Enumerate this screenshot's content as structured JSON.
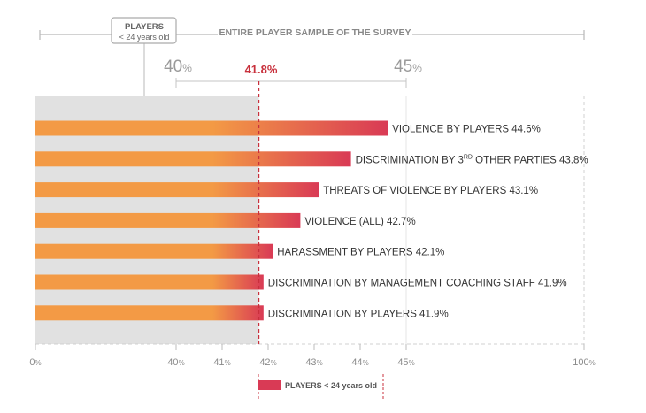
{
  "chart_data": {
    "type": "bar",
    "orientation": "horizontal",
    "title": "ENTIRE PLAYER SAMPLE OF THE SURVEY",
    "subgroup_box": {
      "line1": "PLAYERS",
      "line2": "< 24 years old"
    },
    "reference_value": 41.8,
    "reference_label": "41.8%",
    "top_scale": [
      {
        "value": 40,
        "num": "40",
        "unit": "%"
      },
      {
        "value": 45,
        "num": "45",
        "unit": "%"
      }
    ],
    "series_name": "PLAYERS < 24 years old",
    "categories": [
      {
        "pre": "VIOLENCE BY PLAYERS 44.6%"
      },
      {
        "pre": "DISCRIMINATION BY 3",
        "sup": "RD",
        "post": " OTHER PARTIES 43.8%"
      },
      {
        "pre": "THREATS OF VIOLENCE BY PLAYERS 43.1%"
      },
      {
        "pre": "VIOLENCE (ALL) 42.7%"
      },
      {
        "pre": "HARASSMENT BY PLAYERS 42.1%"
      },
      {
        "pre": "DISCRIMINATION BY MANAGEMENT COACHING STAFF 41.9%"
      },
      {
        "pre": "DISCRIMINATION BY PLAYERS 41.9%"
      }
    ],
    "values": [
      44.6,
      43.8,
      43.1,
      42.7,
      42.1,
      41.9,
      41.9
    ],
    "x_ticks": [
      {
        "value": 0,
        "num": "0",
        "unit": "%"
      },
      {
        "value": 40,
        "num": "40",
        "unit": "%"
      },
      {
        "value": 41,
        "num": "41",
        "unit": "%"
      },
      {
        "value": 42,
        "num": "42",
        "unit": "%"
      },
      {
        "value": 43,
        "num": "43",
        "unit": "%"
      },
      {
        "value": 44,
        "num": "44",
        "unit": "%"
      },
      {
        "value": 45,
        "num": "45",
        "unit": "%"
      },
      {
        "value": 100,
        "num": "100",
        "unit": "%"
      }
    ],
    "colors": {
      "bar_start": "#f39a45",
      "bar_end": "#d93a55",
      "reference": "#c8303c",
      "shade": "#e1e1e1",
      "text": "#333333",
      "axis": "#999999"
    }
  }
}
